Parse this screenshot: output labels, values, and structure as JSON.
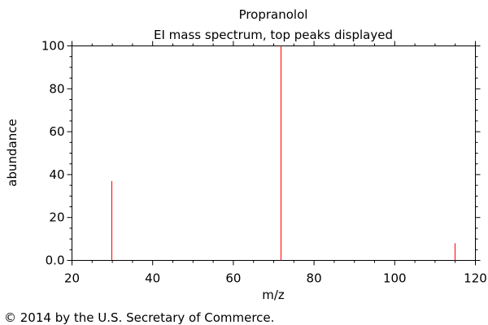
{
  "chart_data": {
    "type": "bar",
    "title": "Propranolol",
    "subtitle": "EI mass spectrum, top peaks displayed",
    "xlabel": "m/z",
    "ylabel": "abundance",
    "xlim": [
      20,
      120
    ],
    "ylim": [
      0,
      100
    ],
    "x_ticks": [
      20,
      40,
      60,
      80,
      100,
      120
    ],
    "y_ticks": [
      0,
      20,
      40,
      60,
      80,
      100
    ],
    "x_tick_labels": [
      "20",
      "40",
      "60",
      "80",
      "100",
      "120"
    ],
    "y_tick_labels": [
      "0.0",
      "20",
      "40",
      "60",
      "80",
      "100"
    ],
    "grid": false,
    "peaks": [
      {
        "mz": 30,
        "abundance": 37
      },
      {
        "mz": 72,
        "abundance": 100
      },
      {
        "mz": 115,
        "abundance": 8
      }
    ],
    "peak_color": "#ff0000"
  },
  "footer": {
    "copyright": "© 2014 by the U.S. Secretary of Commerce."
  }
}
